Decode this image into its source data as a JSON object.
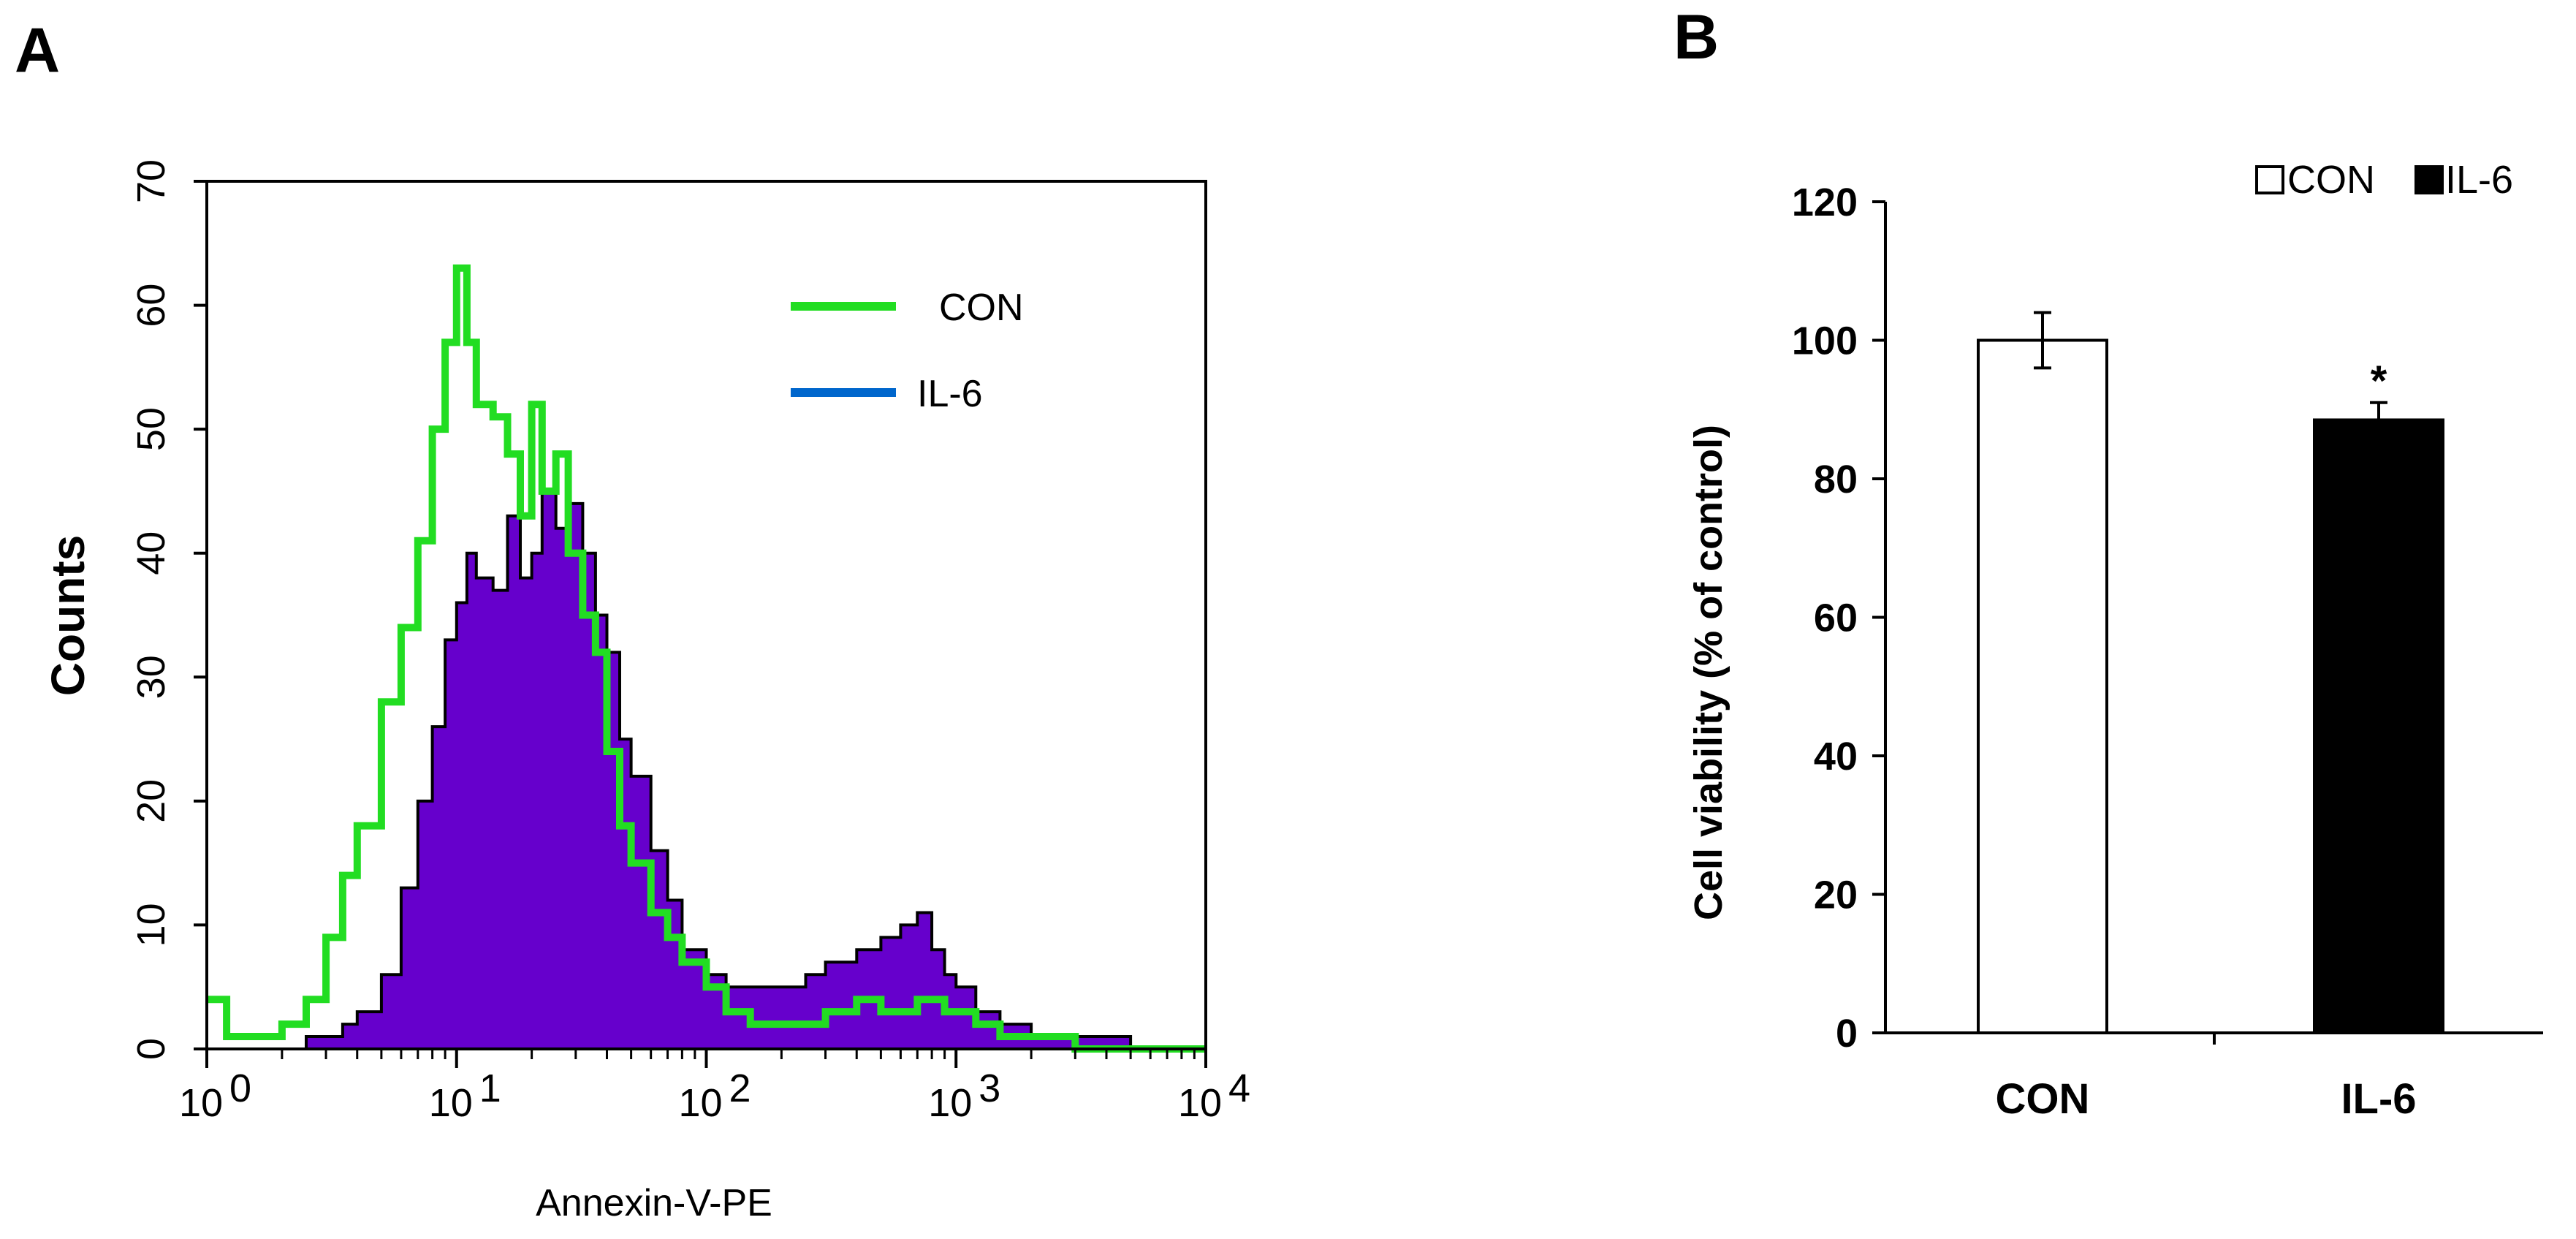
{
  "panel_a_label": "A",
  "panel_b_label": "B",
  "chart_data": [
    {
      "type": "histogram",
      "title": "",
      "xlabel": "Annexin-V-PE",
      "ylabel": "Counts",
      "xscale": "log",
      "xlim": [
        1,
        10000
      ],
      "ylim": [
        0,
        70
      ],
      "xticks": [
        {
          "base": "10",
          "exp": "0",
          "value": 1
        },
        {
          "base": "10",
          "exp": "1",
          "value": 10
        },
        {
          "base": "10",
          "exp": "2",
          "value": 100
        },
        {
          "base": "10",
          "exp": "3",
          "value": 1000
        },
        {
          "base": "10",
          "exp": "4",
          "value": 10000
        }
      ],
      "yticks": [
        "0",
        "10",
        "20",
        "30",
        "40",
        "50",
        "60",
        "70"
      ],
      "legend_position": "top-right",
      "series": [
        {
          "name": "CON",
          "color": "#22dd22",
          "style": "step-line",
          "x": [
            1,
            1.2,
            1.5,
            2,
            2.5,
            3,
            3.5,
            4,
            5,
            6,
            7,
            8,
            9,
            10,
            11,
            12,
            14,
            16,
            18,
            20,
            22,
            25,
            28,
            32,
            36,
            40,
            45,
            50,
            60,
            70,
            80,
            100,
            120,
            150,
            200,
            250,
            300,
            400,
            500,
            600,
            700,
            800,
            900,
            1000,
            1200,
            1500,
            2000,
            3000,
            5000,
            10000
          ],
          "y": [
            4,
            1,
            1,
            2,
            4,
            9,
            14,
            18,
            28,
            34,
            41,
            50,
            57,
            63,
            57,
            52,
            51,
            48,
            43,
            52,
            45,
            48,
            40,
            35,
            32,
            24,
            18,
            15,
            11,
            9,
            7,
            5,
            3,
            2,
            2,
            2,
            3,
            4,
            3,
            3,
            4,
            4,
            3,
            3,
            2,
            1,
            1,
            0,
            0,
            0
          ]
        },
        {
          "name": "IL-6",
          "color": "#0066cc",
          "fill": "#6600cc",
          "style": "filled-histogram",
          "x": [
            1,
            1.2,
            1.5,
            2,
            2.5,
            3,
            3.5,
            4,
            5,
            6,
            7,
            8,
            9,
            10,
            11,
            12,
            14,
            16,
            18,
            20,
            22,
            25,
            28,
            32,
            36,
            40,
            45,
            50,
            60,
            70,
            80,
            100,
            120,
            150,
            200,
            250,
            300,
            400,
            500,
            600,
            700,
            800,
            900,
            1000,
            1200,
            1500,
            2000,
            3000,
            5000,
            10000
          ],
          "y": [
            0,
            0,
            0,
            0,
            1,
            1,
            2,
            3,
            6,
            13,
            20,
            26,
            33,
            36,
            40,
            38,
            37,
            43,
            38,
            40,
            45,
            42,
            44,
            40,
            35,
            32,
            25,
            22,
            16,
            12,
            8,
            6,
            5,
            5,
            5,
            6,
            7,
            8,
            9,
            10,
            11,
            8,
            6,
            5,
            3,
            2,
            1,
            1,
            0,
            0
          ]
        }
      ]
    },
    {
      "type": "bar",
      "title": "",
      "xlabel": "",
      "ylabel": "Cell viability (%  of control)",
      "ylim": [
        0,
        120
      ],
      "yticks": [
        "0",
        "20",
        "40",
        "60",
        "80",
        "100",
        "120"
      ],
      "categories": [
        "CON",
        "IL-6"
      ],
      "values": [
        100,
        88.5
      ],
      "errors": [
        4,
        2.5
      ],
      "colors": [
        "#ffffff",
        "#000000"
      ],
      "annotations": [
        "",
        "*"
      ],
      "legend": [
        "CON",
        "IL-6"
      ],
      "legend_position": "top-right"
    }
  ]
}
